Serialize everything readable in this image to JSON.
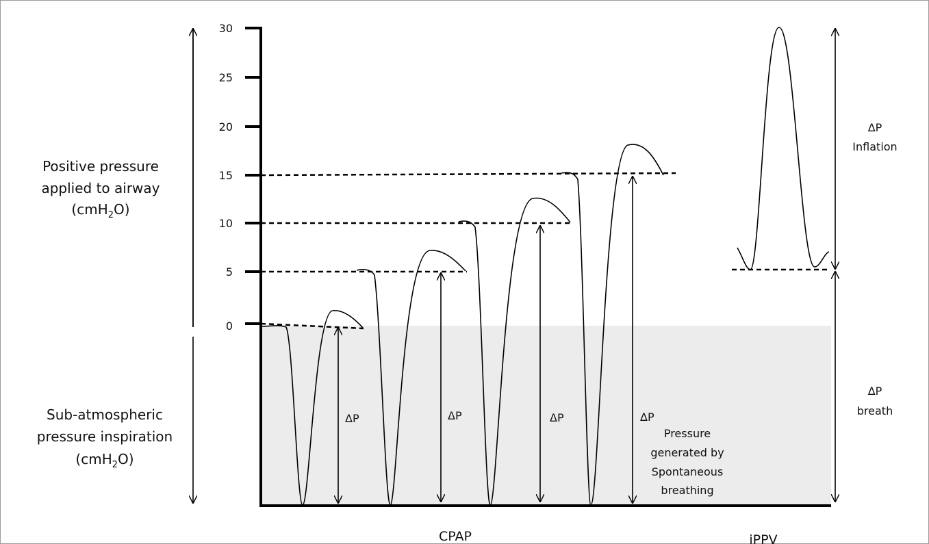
{
  "y_axis": {
    "ticks": [
      "30",
      "25",
      "20",
      "15",
      "10",
      "5",
      "0"
    ]
  },
  "left_labels": {
    "positive": [
      "Positive pressure",
      "applied to airway",
      "(cmH",
      "2",
      "O)"
    ],
    "negative": [
      "Sub-atmospheric",
      "pressure inspiration",
      "(cmH",
      "2",
      "O)"
    ]
  },
  "delta_p_labels": [
    "ΔP",
    "ΔP",
    "ΔP",
    "ΔP"
  ],
  "pressure_note": [
    "Pressure",
    "generated by",
    "Spontaneous",
    "breathing"
  ],
  "right_labels": {
    "inflation": [
      "ΔP",
      "Inflation"
    ],
    "breath": [
      "ΔP",
      "breath"
    ]
  },
  "bottom_labels": {
    "cpap": "CPAP",
    "ippv": "iPPV"
  },
  "colors": {
    "shading": "#ececec",
    "line": "#000000"
  }
}
